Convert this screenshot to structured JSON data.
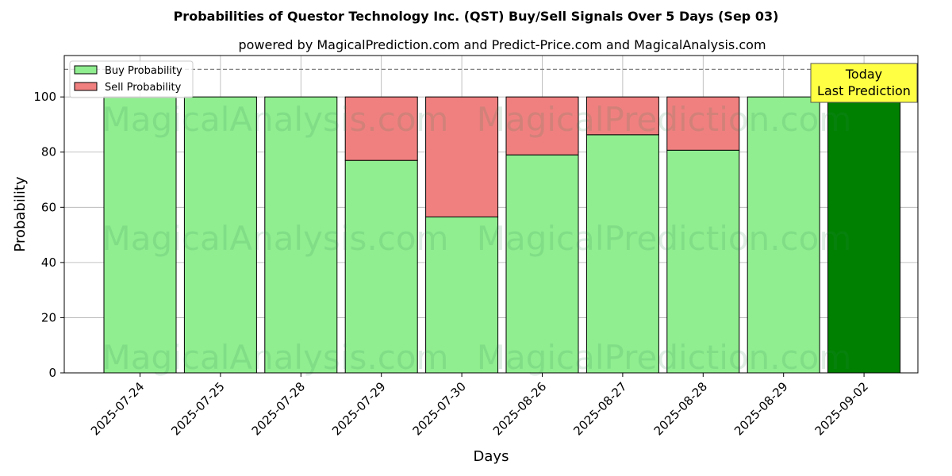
{
  "chart_data": {
    "type": "bar",
    "stacked": true,
    "title": "Probabilities of Questor Technology Inc. (QST) Buy/Sell Signals Over 5 Days (Sep 03)",
    "subtitle": "powered by MagicalPrediction.com and Predict-Price.com and MagicalAnalysis.com",
    "xlabel": "Days",
    "ylabel": "Probability",
    "ylim": [
      0,
      115
    ],
    "yticks": [
      0,
      20,
      40,
      60,
      80,
      100
    ],
    "grid": true,
    "legend_position": "top-left",
    "categories": [
      "2025-07-24",
      "2025-07-25",
      "2025-07-28",
      "2025-07-29",
      "2025-07-30",
      "2025-08-26",
      "2025-08-27",
      "2025-08-28",
      "2025-08-29",
      "2025-09-02"
    ],
    "series": [
      {
        "name": "Buy Probability",
        "color": "#90ee90",
        "values": [
          100,
          100,
          100,
          77,
          56.5,
          79,
          86.3,
          80.7,
          100,
          100
        ]
      },
      {
        "name": "Sell Probability",
        "color": "#f08080",
        "values": [
          0,
          0,
          0,
          23,
          43.5,
          21,
          13.7,
          19.3,
          0,
          0
        ]
      }
    ],
    "highlight": {
      "index": 9,
      "color": "#008000"
    },
    "reference_line": {
      "y": 110,
      "style": "dashed"
    },
    "annotation": {
      "lines": [
        "Today",
        "Last Prediction"
      ],
      "background": "#ffff44"
    },
    "watermarks": [
      "MagicalAnalysis.com",
      "MagicalPrediction.com"
    ]
  }
}
